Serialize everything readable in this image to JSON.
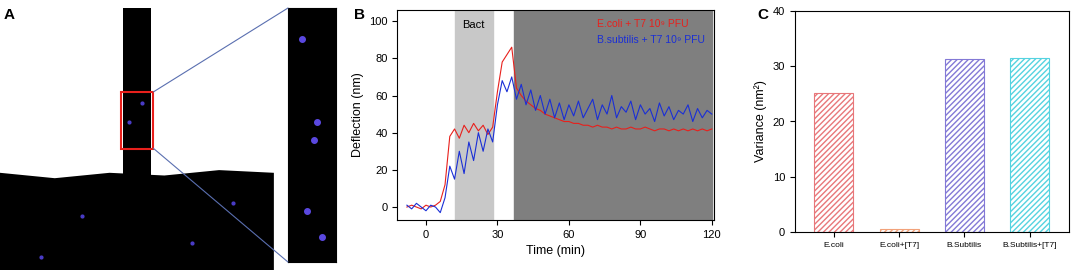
{
  "panel_labels": [
    "A",
    "B",
    "C"
  ],
  "chart_data": [
    {
      "type": "image"
    },
    {
      "type": "line",
      "x_label": "Time (min)",
      "y_label": "Deflection (nm)",
      "xlim": [
        -12,
        121
      ],
      "xticks": [
        0,
        30,
        60,
        90,
        120
      ],
      "ylim": [
        -7,
        106
      ],
      "yticks": [
        0,
        20,
        40,
        60,
        80,
        100
      ],
      "legend": "upper right",
      "spans": [
        {
          "x": [
            12,
            28
          ],
          "label": "Bact"
        },
        {
          "x": [
            37,
            120
          ]
        }
      ],
      "x": [
        -8,
        -6,
        -4,
        -2,
        0,
        2,
        4,
        6,
        8,
        10,
        12,
        14,
        16,
        18,
        20,
        22,
        24,
        26,
        28,
        30,
        32,
        34,
        36,
        38,
        40,
        42,
        44,
        46,
        48,
        50,
        52,
        54,
        56,
        58,
        60,
        62,
        64,
        66,
        68,
        70,
        72,
        74,
        76,
        78,
        80,
        82,
        84,
        86,
        88,
        90,
        92,
        94,
        96,
        98,
        100,
        102,
        104,
        106,
        108,
        110,
        112,
        114,
        116,
        118,
        120
      ],
      "series": [
        {
          "name": "E.coli + T7 10⁹ PFU",
          "color": "#e8201c",
          "values": [
            0,
            1,
            0,
            -1,
            1,
            0,
            1,
            3,
            12,
            38,
            42,
            37,
            44,
            40,
            45,
            41,
            44,
            39,
            43,
            62,
            78,
            82,
            86,
            64,
            60,
            57,
            55,
            53,
            52,
            50,
            49,
            48,
            47,
            46,
            46,
            45,
            45,
            44,
            44,
            43,
            44,
            43,
            43,
            42,
            43,
            42,
            42,
            43,
            42,
            42,
            43,
            42,
            41,
            42,
            42,
            41,
            42,
            41,
            42,
            41,
            42,
            41,
            42,
            41,
            42
          ]
        },
        {
          "name": "B.subtilis + T7 10⁹ PFU",
          "color": "#1a2fd6",
          "values": [
            1,
            -1,
            2,
            0,
            -2,
            1,
            0,
            -3,
            5,
            22,
            15,
            30,
            18,
            35,
            25,
            40,
            30,
            42,
            35,
            55,
            68,
            62,
            70,
            58,
            66,
            55,
            63,
            52,
            60,
            50,
            58,
            48,
            56,
            47,
            55,
            49,
            57,
            48,
            53,
            58,
            47,
            55,
            50,
            60,
            48,
            54,
            51,
            57,
            47,
            55,
            50,
            53,
            46,
            56,
            49,
            54,
            47,
            52,
            50,
            55,
            46,
            53,
            48,
            52,
            50
          ]
        }
      ]
    },
    {
      "type": "bar",
      "y_label": "Variance (nm²)",
      "categories": [
        "E.coli",
        "E.coli+[T7]",
        "B.Subtilis",
        "B.Subtilis+[T7]"
      ],
      "values": [
        25.2,
        0.5,
        31.3,
        31.5
      ],
      "colors": [
        "#e8777a",
        "#f2a27a",
        "#8379d6",
        "#55d3e0"
      ],
      "ylim": [
        0,
        40
      ],
      "yticks": [
        0,
        10,
        20,
        30,
        40
      ]
    }
  ]
}
